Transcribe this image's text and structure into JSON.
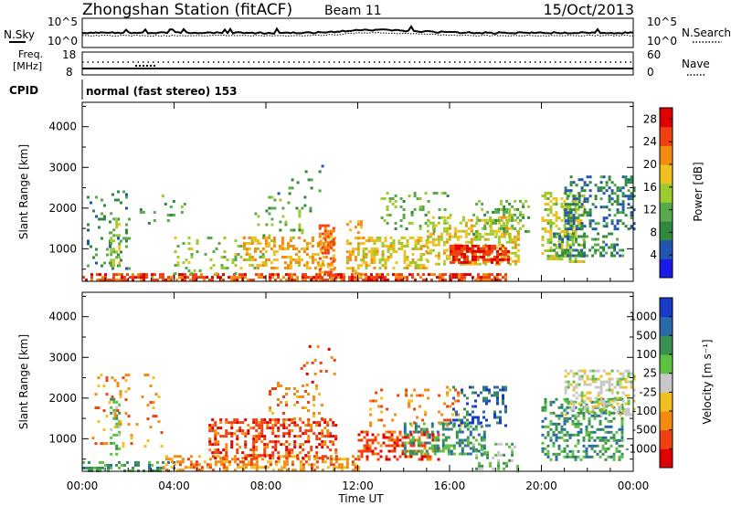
{
  "header": {
    "title": "Zhongshan Station (fitACF)",
    "beam": "Beam 11",
    "date": "15/Oct/2013"
  },
  "nsky": {
    "label": "N.Sky",
    "ticks": [
      "10^5",
      "10^0"
    ],
    "right_label": "N.Search",
    "right_ticks": [
      "10^5",
      "10^0"
    ]
  },
  "freq": {
    "label_line1": "Freq.",
    "label_line2": "[MHz]",
    "ticks": [
      "18",
      "8"
    ],
    "right_label": "Nave",
    "right_ticks": [
      "60",
      "0"
    ],
    "cpid_label": "CPID",
    "cpid_text": "normal (fast stereo) 153"
  },
  "colors": {
    "power": [
      "#1a1ae8",
      "#2255b0",
      "#2e8a3c",
      "#5aa84c",
      "#9ccc2c",
      "#f0c020",
      "#f58a10",
      "#f04010",
      "#e00000"
    ],
    "velocity": [
      "#e00000",
      "#f04010",
      "#f58a10",
      "#f0c020",
      "#c8c8c8",
      "#5cc040",
      "#3a9050",
      "#2a6aa8",
      "#1a3ac8"
    ]
  },
  "x_axis": {
    "label": "Time UT",
    "ticks": [
      "00:00",
      "04:00",
      "08:00",
      "12:00",
      "16:00",
      "20:00",
      "00:00"
    ]
  },
  "chart_data": [
    {
      "type": "heatmap",
      "name": "power",
      "ylabel": "Slant Range [km]",
      "yticks": [
        "1000",
        "2000",
        "3000",
        "4000"
      ],
      "ylim": [
        200,
        4600
      ],
      "xlim": [
        0,
        24
      ],
      "colorbar_label": "Power [dB]",
      "colorbar_ticks": [
        "4",
        "8",
        "12",
        "16",
        "20",
        "24",
        "28"
      ],
      "colorbar_range": [
        0,
        30
      ],
      "blobs": [
        {
          "x0": 0.0,
          "x1": 18.5,
          "r0": 200,
          "r1": 400,
          "v": 26,
          "d": 0.65
        },
        {
          "x0": 0.2,
          "x1": 2.0,
          "r0": 500,
          "r1": 2500,
          "v": 8,
          "d": 0.1
        },
        {
          "x0": 1.2,
          "x1": 1.6,
          "r0": 600,
          "r1": 1900,
          "v": 14,
          "d": 0.45
        },
        {
          "x0": 2.5,
          "x1": 4.5,
          "r0": 1600,
          "r1": 2400,
          "v": 10,
          "d": 0.1
        },
        {
          "x0": 4.0,
          "x1": 8.0,
          "r0": 400,
          "r1": 1300,
          "v": 14,
          "d": 0.15
        },
        {
          "x0": 7.0,
          "x1": 11.0,
          "r0": 500,
          "r1": 1300,
          "v": 20,
          "d": 0.42
        },
        {
          "x0": 7.5,
          "x1": 10.0,
          "r0": 1300,
          "r1": 2300,
          "v": 12,
          "d": 0.12
        },
        {
          "x0": 8.5,
          "x1": 10.5,
          "r0": 2300,
          "r1": 3200,
          "v": 8,
          "d": 0.06
        },
        {
          "x0": 10.3,
          "x1": 10.9,
          "r0": 250,
          "r1": 1600,
          "v": 24,
          "d": 0.55
        },
        {
          "x0": 11.5,
          "x1": 12.2,
          "r0": 300,
          "r1": 1700,
          "v": 20,
          "d": 0.4
        },
        {
          "x0": 12.2,
          "x1": 15.0,
          "r0": 550,
          "r1": 1300,
          "v": 18,
          "d": 0.45
        },
        {
          "x0": 13.0,
          "x1": 16.0,
          "r0": 1400,
          "r1": 2400,
          "v": 12,
          "d": 0.15
        },
        {
          "x0": 15.0,
          "x1": 19.0,
          "r0": 600,
          "r1": 1800,
          "v": 18,
          "d": 0.45
        },
        {
          "x0": 16.0,
          "x1": 18.6,
          "r0": 650,
          "r1": 1100,
          "v": 28,
          "d": 0.75
        },
        {
          "x0": 17.0,
          "x1": 19.5,
          "r0": 1300,
          "r1": 2200,
          "v": 12,
          "d": 0.25
        },
        {
          "x0": 20.0,
          "x1": 21.8,
          "r0": 700,
          "r1": 2400,
          "v": 16,
          "d": 0.4
        },
        {
          "x0": 20.5,
          "x1": 23.5,
          "r0": 800,
          "r1": 1400,
          "v": 8,
          "d": 0.4
        },
        {
          "x0": 21.0,
          "x1": 24.0,
          "r0": 1500,
          "r1": 2800,
          "v": 6,
          "d": 0.4
        }
      ]
    },
    {
      "type": "heatmap",
      "name": "velocity",
      "ylabel": "Slant Range [km]",
      "yticks": [
        "1000",
        "2000",
        "3000",
        "4000"
      ],
      "ylim": [
        200,
        4600
      ],
      "xlim": [
        0,
        24
      ],
      "colorbar_label": "Velocity [m s⁻¹]",
      "colorbar_ticks": [
        "1000",
        "500",
        "100",
        "25",
        "-25",
        "-100",
        "-500",
        "-1000"
      ],
      "blobs": [
        {
          "x0": 0.0,
          "x1": 4.0,
          "r0": 200,
          "r1": 450,
          "v": 6,
          "d": 0.45
        },
        {
          "x0": 1.2,
          "x1": 1.6,
          "r0": 600,
          "r1": 2000,
          "v": 5,
          "d": 0.45
        },
        {
          "x0": 0.3,
          "x1": 3.5,
          "r0": 800,
          "r1": 2600,
          "v": 2,
          "d": 0.08
        },
        {
          "x0": 3.5,
          "x1": 12.0,
          "r0": 200,
          "r1": 600,
          "v": 2,
          "d": 0.5
        },
        {
          "x0": 5.5,
          "x1": 11.0,
          "r0": 500,
          "r1": 1500,
          "v": 1,
          "d": 0.42
        },
        {
          "x0": 8.0,
          "x1": 10.5,
          "r0": 1400,
          "r1": 2400,
          "v": 2,
          "d": 0.15
        },
        {
          "x0": 9.5,
          "x1": 11.0,
          "r0": 2300,
          "r1": 3300,
          "v": 1,
          "d": 0.1
        },
        {
          "x0": 12.0,
          "x1": 15.5,
          "r0": 500,
          "r1": 1200,
          "v": 1,
          "d": 0.45
        },
        {
          "x0": 12.5,
          "x1": 16.5,
          "r0": 1300,
          "r1": 2300,
          "v": 2,
          "d": 0.15
        },
        {
          "x0": 14.0,
          "x1": 17.5,
          "r0": 600,
          "r1": 1400,
          "v": 6,
          "d": 0.45
        },
        {
          "x0": 16.0,
          "x1": 18.5,
          "r0": 1300,
          "r1": 2300,
          "v": 7,
          "d": 0.3
        },
        {
          "x0": 17.0,
          "x1": 19.0,
          "r0": 200,
          "r1": 900,
          "v": 5,
          "d": 0.3
        },
        {
          "x0": 20.0,
          "x1": 23.5,
          "r0": 500,
          "r1": 2000,
          "v": 6,
          "d": 0.4
        },
        {
          "x0": 21.0,
          "x1": 24.0,
          "r0": 1600,
          "r1": 2700,
          "v": 4,
          "d": 0.45
        }
      ]
    }
  ]
}
